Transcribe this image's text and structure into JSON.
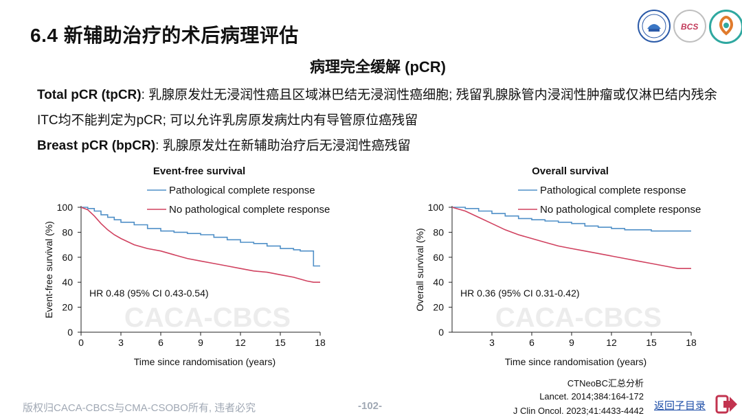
{
  "header": {
    "title": "6.4 新辅助治疗的术后病理评估",
    "subtitle": "病理完全缓解 (pCR)",
    "logos": [
      "university-seal-logo",
      "bcs-logo",
      "caca-cbcs-logo"
    ]
  },
  "definitions": {
    "tpcr_term": "Total pCR (tpCR)",
    "tpcr_text": ": 乳腺原发灶无浸润性癌且区域淋巴结无浸润性癌细胞; 残留乳腺脉管内浸润性肿瘤或仅淋巴结内残余ITC均不能判定为pCR; 可以允许乳房原发病灶内有导管原位癌残留",
    "bpcr_term": "Breast pCR (bpCR)",
    "bpcr_text": ": 乳腺原发灶在新辅助治疗后无浸润性癌残留"
  },
  "watermark": "CACA-CBCS",
  "chart_data": [
    {
      "type": "line",
      "title": "Event-free survival",
      "xlabel": "Time since randomisation (years)",
      "ylabel": "Event-free survival (%)",
      "xlim": [
        0,
        18
      ],
      "ylim": [
        0,
        100
      ],
      "xticks": [
        "0",
        "3",
        "6",
        "9",
        "12",
        "15",
        "18"
      ],
      "yticks": [
        "0",
        "20",
        "40",
        "60",
        "80",
        "100"
      ],
      "annotation": "HR 0.48 (95% CI 0.43-0.54)",
      "legend_position": "top-right",
      "series": [
        {
          "name": "Pathological complete response",
          "color": "#4f8fc7",
          "step": true,
          "points": [
            [
              0,
              100
            ],
            [
              0.5,
              99
            ],
            [
              1,
              97
            ],
            [
              1.5,
              94
            ],
            [
              2,
              92
            ],
            [
              2.5,
              90
            ],
            [
              3,
              88
            ],
            [
              4,
              86
            ],
            [
              5,
              83
            ],
            [
              6,
              81
            ],
            [
              7,
              80
            ],
            [
              8,
              79
            ],
            [
              9,
              78
            ],
            [
              10,
              76
            ],
            [
              11,
              74
            ],
            [
              12,
              72
            ],
            [
              13,
              71
            ],
            [
              14,
              69
            ],
            [
              15,
              67
            ],
            [
              16,
              66
            ],
            [
              16.5,
              65
            ],
            [
              17.5,
              65
            ],
            [
              17.5,
              53
            ],
            [
              18,
              53
            ]
          ]
        },
        {
          "name": "No pathological complete response",
          "color": "#d0415f",
          "step": false,
          "points": [
            [
              0,
              100
            ],
            [
              0.5,
              98
            ],
            [
              1,
              93
            ],
            [
              1.5,
              87
            ],
            [
              2,
              82
            ],
            [
              2.5,
              78
            ],
            [
              3,
              75
            ],
            [
              4,
              70
            ],
            [
              5,
              67
            ],
            [
              6,
              65
            ],
            [
              7,
              62
            ],
            [
              8,
              59
            ],
            [
              9,
              57
            ],
            [
              10,
              55
            ],
            [
              11,
              53
            ],
            [
              12,
              51
            ],
            [
              13,
              49
            ],
            [
              14,
              48
            ],
            [
              15,
              46
            ],
            [
              16,
              44
            ],
            [
              17,
              41
            ],
            [
              17.5,
              40
            ],
            [
              18,
              40
            ]
          ]
        }
      ]
    },
    {
      "type": "line",
      "title": "Overall survival",
      "xlabel": "Time since randomisation (years)",
      "ylabel": "Overall survival (%)",
      "xlim": [
        0,
        18
      ],
      "ylim": [
        0,
        100
      ],
      "xticks": [
        "3",
        "6",
        "9",
        "12",
        "15",
        "18"
      ],
      "yticks": [
        "0",
        "20",
        "40",
        "60",
        "80",
        "100"
      ],
      "annotation": "HR 0.36 (95% CI 0.31-0.42)",
      "legend_position": "top-right",
      "series": [
        {
          "name": "Pathological complete response",
          "color": "#4f8fc7",
          "step": true,
          "points": [
            [
              0,
              100
            ],
            [
              1,
              99
            ],
            [
              2,
              97
            ],
            [
              3,
              95
            ],
            [
              4,
              93
            ],
            [
              5,
              91
            ],
            [
              6,
              90
            ],
            [
              7,
              89
            ],
            [
              8,
              88
            ],
            [
              9,
              87
            ],
            [
              10,
              85
            ],
            [
              11,
              84
            ],
            [
              12,
              83
            ],
            [
              13,
              82
            ],
            [
              14,
              82
            ],
            [
              15,
              81
            ],
            [
              16,
              81
            ],
            [
              17,
              81
            ],
            [
              18,
              81
            ]
          ]
        },
        {
          "name": "No pathological complete response",
          "color": "#d0415f",
          "step": false,
          "points": [
            [
              0,
              100
            ],
            [
              1,
              97
            ],
            [
              2,
              92
            ],
            [
              3,
              87
            ],
            [
              4,
              82
            ],
            [
              5,
              78
            ],
            [
              6,
              75
            ],
            [
              7,
              72
            ],
            [
              8,
              69
            ],
            [
              9,
              67
            ],
            [
              10,
              65
            ],
            [
              11,
              63
            ],
            [
              12,
              61
            ],
            [
              13,
              59
            ],
            [
              14,
              57
            ],
            [
              15,
              55
            ],
            [
              16,
              53
            ],
            [
              17,
              51
            ],
            [
              18,
              51
            ]
          ]
        }
      ]
    }
  ],
  "sources": {
    "line1": "CTNeoBC汇总分析",
    "line2": "Lancet. 2014;384:164-172",
    "line3": "J Clin Oncol. 2023;41:4433-4442"
  },
  "footer": {
    "copyright": "版权归CACA-CBCS与CMA-CSOBO所有, 违者必究",
    "page_number": "-102-",
    "back_link": "返回子目录",
    "back_icon": "arrow-right-icon"
  }
}
